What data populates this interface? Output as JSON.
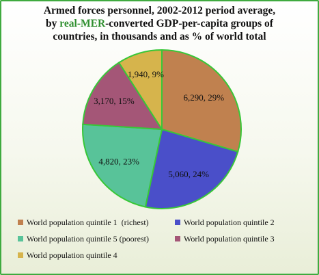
{
  "chart_data": {
    "type": "pie",
    "title_lines": [
      [
        "Armed forces personnel, 2002-2012 period average,"
      ],
      [
        "by ",
        "real-MER",
        "-converted GDP-per-capita groups of"
      ],
      [
        "countries, in thousands and as % of world total"
      ]
    ],
    "slices": [
      {
        "name": "World population quintile 1  (richest)",
        "value": 6290,
        "percent": 29,
        "label": "6,290, 29%",
        "color": "#c0814f"
      },
      {
        "name": "World population quintile 2",
        "value": 5060,
        "percent": 24,
        "label": "5,060, 24%",
        "color": "#4a4fc9"
      },
      {
        "name": "World population quintile 5 (poorest)",
        "value": 4820,
        "percent": 23,
        "label": "4,820, 23%",
        "color": "#58c399"
      },
      {
        "name": "World population quintile 3",
        "value": 3170,
        "percent": 15,
        "label": "3,170, 15%",
        "color": "#a45677"
      },
      {
        "name": "World population quintile 4",
        "value": 1940,
        "percent": 9,
        "label": "1,940, 9%",
        "color": "#d6b44c"
      }
    ],
    "legend_order": [
      0,
      1,
      2,
      3,
      4
    ],
    "legend_placement": "bottom",
    "slice_border_color": "#38c738",
    "title_highlight_color": "#2f8f2f"
  }
}
